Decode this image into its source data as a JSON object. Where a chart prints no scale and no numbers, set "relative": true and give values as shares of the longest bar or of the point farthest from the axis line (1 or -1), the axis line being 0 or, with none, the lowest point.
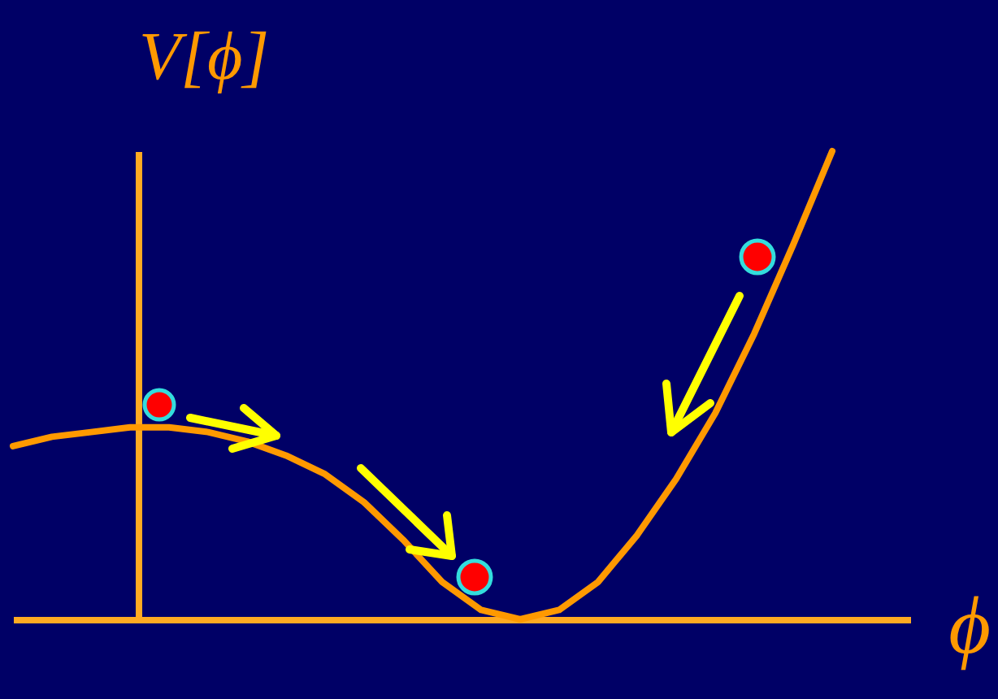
{
  "chart_data": {
    "type": "line",
    "relative": true,
    "tick_labels": false,
    "xlabel": "ϕ",
    "ylabel": "V[ϕ]",
    "categories": [
      null,
      null,
      null,
      null,
      null,
      null,
      null,
      null,
      null,
      null,
      null,
      null,
      null,
      null,
      null,
      null,
      null,
      null,
      null,
      null,
      null,
      null
    ],
    "series": [
      {
        "color": "#ff9900",
        "values": [
          0.37,
          0.39,
          0.4,
          0.41,
          0.41,
          0.4,
          0.38,
          0.35,
          0.31,
          0.25,
          0.17,
          0.08,
          0.02,
          0.0,
          0.02,
          0.08,
          0.18,
          0.3,
          0.44,
          0.61,
          0.8,
          1.0
        ]
      }
    ]
  }
}
